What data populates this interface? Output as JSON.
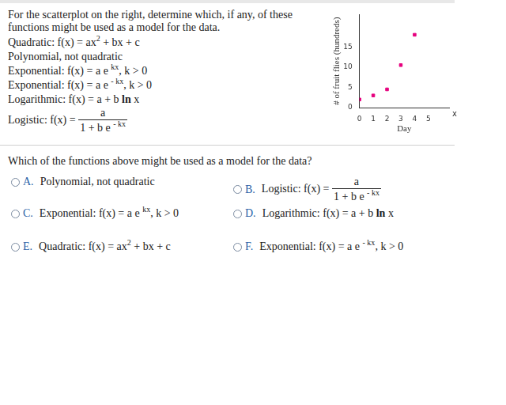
{
  "prompt": "For the scatterplot on the right, determine which, if any, of these functions might be used as a model for the data.",
  "functions": [
    [
      {
        "t": "Quadratic: f(x) = ax"
      },
      {
        "sup": "2"
      },
      {
        "t": " + bx + c"
      }
    ],
    [
      {
        "t": "Polynomial, not quadratic"
      }
    ],
    [
      {
        "t": "Exponential: f(x) = a e "
      },
      {
        "sup": "kx"
      },
      {
        "t": ", k > 0"
      }
    ],
    [
      {
        "t": "Exponential: f(x) = a e "
      },
      {
        "sup": "- kx"
      },
      {
        "t": ", k > 0"
      }
    ],
    [
      {
        "t": "Logarithmic: f(x) = a + b "
      },
      {
        "b": "ln"
      },
      {
        "t": " x"
      }
    ],
    [
      {
        "t": "Logistic: f(x) = "
      },
      {
        "frac": {
          "num": [
            {
              "t": "a"
            }
          ],
          "den": [
            {
              "t": "1 + b e "
            },
            {
              "sup": "- kx"
            }
          ]
        }
      }
    ]
  ],
  "question": "Which of the functions above might be used as a model for the data?",
  "options": [
    {
      "letter": "A.",
      "text": [
        {
          "t": "Polynomial, not quadratic"
        }
      ]
    },
    {
      "letter": "B.",
      "text": [
        {
          "t": "Logistic: f(x) = "
        },
        {
          "frac": {
            "num": [
              {
                "t": "a"
              }
            ],
            "den": [
              {
                "t": "1 + b e "
              },
              {
                "sup": "- kx"
              }
            ]
          }
        }
      ]
    },
    {
      "letter": "C.",
      "text": [
        {
          "t": "Exponential: f(x) = a e "
        },
        {
          "sup": "kx"
        },
        {
          "t": ", k > 0"
        }
      ]
    },
    {
      "letter": "D.",
      "text": [
        {
          "t": "Logarithmic: f(x) = a + b "
        },
        {
          "b": "ln"
        },
        {
          "t": " x"
        }
      ]
    },
    {
      "letter": "E.",
      "text": [
        {
          "t": "Quadratic: f(x) = ax"
        },
        {
          "sup": "2"
        },
        {
          "t": " + bx + c"
        }
      ]
    },
    {
      "letter": "F.",
      "text": [
        {
          "t": "Exponential: f(x) = a e "
        },
        {
          "sup": "- kx"
        },
        {
          "t": ", k > 0"
        }
      ]
    }
  ],
  "chart_data": {
    "type": "scatter",
    "x": [
      0,
      1,
      2,
      3,
      4
    ],
    "values": [
      2,
      3,
      4.5,
      10.5,
      18
    ],
    "color": "#e6007e",
    "marker": "square",
    "xlim": [
      0,
      6.5
    ],
    "ylim": [
      0,
      23
    ],
    "xticks": [
      0,
      1,
      2,
      3,
      4,
      5
    ],
    "yticks": [
      0,
      5,
      10,
      15
    ],
    "x_label": "Day",
    "y_label": "# of fruit flies (hundreds)",
    "annotations": [
      "x"
    ],
    "grid": false
  }
}
